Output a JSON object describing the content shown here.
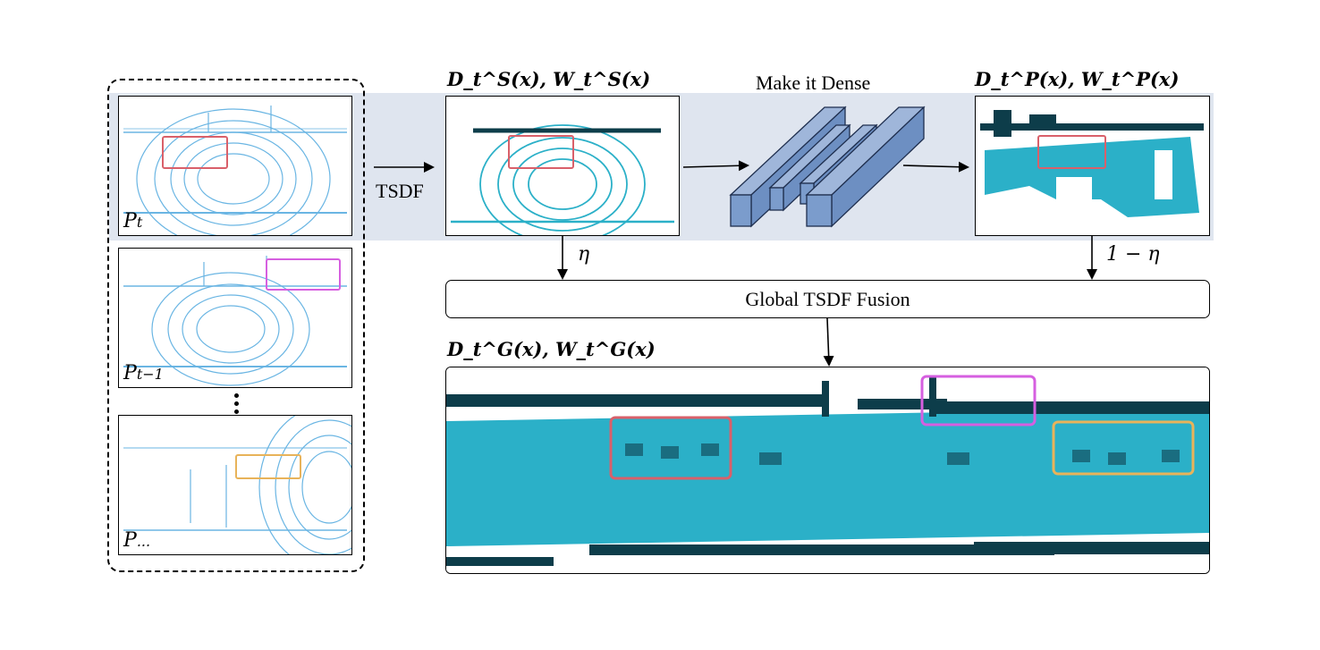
{
  "input_frames": [
    {
      "label_main": "P",
      "label_sub": "t"
    },
    {
      "label_main": "P",
      "label_sub": "t−1"
    },
    {
      "label_main": "P",
      "label_sub": "..."
    }
  ],
  "tsdf_label": "TSDF",
  "sparse_label": "D_t^S(x), W_t^S(x)",
  "dense_title": "Make it Dense",
  "pred_label": "D_t^P(x), W_t^P(x)",
  "eta_label": "η",
  "one_minus_eta_label": "1 − η",
  "fusion_label": "Global TSDF Fusion",
  "global_label": "D_t^G(x), W_t^G(x)",
  "colors": {
    "band": "#dfe5ef",
    "network_block": "#7b9ccc",
    "map_cyan": "#2bb0c8",
    "map_dark": "#0d3d4a",
    "point_blue": "#5aaee0",
    "highlight_red": "#d9606a",
    "highlight_magenta": "#d65fe0",
    "highlight_orange": "#e8b35a"
  }
}
